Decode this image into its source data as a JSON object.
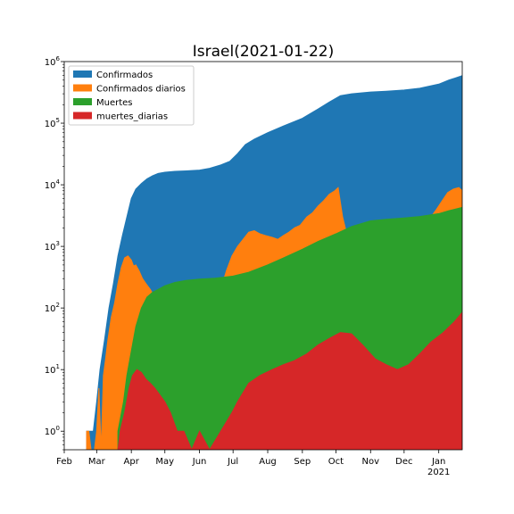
{
  "chart_data": {
    "type": "area",
    "title": "Israel(2021-01-22)",
    "xlabel": "",
    "ylabel": "",
    "yscale": "log",
    "ylim": [
      0.5,
      1000000
    ],
    "xlim": [
      "2020-02-01",
      "2021-01-22"
    ],
    "grid": false,
    "legend_position": "top-left",
    "x_ticks": [
      {
        "date": "2020-02-01",
        "label": "Feb"
      },
      {
        "date": "2020-03-01",
        "label": "Mar"
      },
      {
        "date": "2020-04-01",
        "label": "Apr"
      },
      {
        "date": "2020-05-01",
        "label": "May"
      },
      {
        "date": "2020-06-01",
        "label": "Jun"
      },
      {
        "date": "2020-07-01",
        "label": "Jul"
      },
      {
        "date": "2020-08-01",
        "label": "Aug"
      },
      {
        "date": "2020-09-01",
        "label": "Sep"
      },
      {
        "date": "2020-10-01",
        "label": "Oct"
      },
      {
        "date": "2020-11-01",
        "label": "Nov"
      },
      {
        "date": "2020-12-01",
        "label": "Dec"
      },
      {
        "date": "2021-01-01",
        "label": "Jan"
      }
    ],
    "x_year_label": "2021",
    "y_ticks": [
      {
        "value": 1,
        "base": "10",
        "exp": "0"
      },
      {
        "value": 10,
        "base": "10",
        "exp": "1"
      },
      {
        "value": 100,
        "base": "10",
        "exp": "2"
      },
      {
        "value": 1000,
        "base": "10",
        "exp": "3"
      },
      {
        "value": 10000,
        "base": "10",
        "exp": "4"
      },
      {
        "value": 100000,
        "base": "10",
        "exp": "5"
      },
      {
        "value": 1000000,
        "base": "10",
        "exp": "6"
      }
    ],
    "series": [
      {
        "name": "Confirmados",
        "color": "#1f77b4",
        "points": [
          [
            "2020-02-21",
            1
          ],
          [
            "2020-02-27",
            1
          ],
          [
            "2020-03-01",
            3
          ],
          [
            "2020-03-04",
            10
          ],
          [
            "2020-03-08",
            30
          ],
          [
            "2020-03-12",
            100
          ],
          [
            "2020-03-16",
            250
          ],
          [
            "2020-03-20",
            700
          ],
          [
            "2020-03-24",
            1500
          ],
          [
            "2020-03-28",
            3000
          ],
          [
            "2020-04-01",
            6000
          ],
          [
            "2020-04-05",
            8500
          ],
          [
            "2020-04-10",
            10500
          ],
          [
            "2020-04-15",
            12500
          ],
          [
            "2020-04-20",
            14000
          ],
          [
            "2020-04-25",
            15300
          ],
          [
            "2020-05-01",
            16000
          ],
          [
            "2020-05-10",
            16500
          ],
          [
            "2020-05-20",
            16800
          ],
          [
            "2020-06-01",
            17300
          ],
          [
            "2020-06-10",
            18500
          ],
          [
            "2020-06-20",
            21000
          ],
          [
            "2020-06-28",
            24000
          ],
          [
            "2020-07-05",
            32000
          ],
          [
            "2020-07-12",
            45000
          ],
          [
            "2020-07-20",
            55000
          ],
          [
            "2020-08-01",
            70000
          ],
          [
            "2020-08-15",
            90000
          ],
          [
            "2020-09-01",
            120000
          ],
          [
            "2020-09-15",
            170000
          ],
          [
            "2020-09-25",
            220000
          ],
          [
            "2020-10-05",
            280000
          ],
          [
            "2020-10-15",
            300000
          ],
          [
            "2020-11-01",
            320000
          ],
          [
            "2020-11-15",
            330000
          ],
          [
            "2020-12-01",
            345000
          ],
          [
            "2020-12-15",
            370000
          ],
          [
            "2021-01-01",
            430000
          ],
          [
            "2021-01-10",
            500000
          ],
          [
            "2021-01-22",
            590000
          ]
        ]
      },
      {
        "name": "Confirmados diarios",
        "color": "#ff7f0e",
        "points": [
          [
            "2020-02-21",
            1
          ],
          [
            "2020-02-23",
            1
          ],
          [
            "2020-02-25",
            0.5
          ],
          [
            "2020-02-28",
            0.5
          ],
          [
            "2020-03-01",
            1
          ],
          [
            "2020-03-03",
            5
          ],
          [
            "2020-03-05",
            0.5
          ],
          [
            "2020-03-07",
            8
          ],
          [
            "2020-03-09",
            15
          ],
          [
            "2020-03-11",
            30
          ],
          [
            "2020-03-14",
            70
          ],
          [
            "2020-03-17",
            120
          ],
          [
            "2020-03-20",
            250
          ],
          [
            "2020-03-23",
            450
          ],
          [
            "2020-03-26",
            650
          ],
          [
            "2020-03-29",
            700
          ],
          [
            "2020-04-01",
            600
          ],
          [
            "2020-04-03",
            480
          ],
          [
            "2020-04-05",
            500
          ],
          [
            "2020-04-08",
            400
          ],
          [
            "2020-04-11",
            300
          ],
          [
            "2020-04-14",
            250
          ],
          [
            "2020-04-18",
            200
          ],
          [
            "2020-04-22",
            150
          ],
          [
            "2020-04-26",
            80
          ],
          [
            "2020-04-30",
            60
          ],
          [
            "2020-05-04",
            20
          ],
          [
            "2020-05-08",
            15
          ],
          [
            "2020-05-12",
            10
          ],
          [
            "2020-05-16",
            5
          ],
          [
            "2020-05-20",
            15
          ],
          [
            "2020-05-24",
            8
          ],
          [
            "2020-05-28",
            30
          ],
          [
            "2020-06-01",
            80
          ],
          [
            "2020-06-05",
            120
          ],
          [
            "2020-06-10",
            150
          ],
          [
            "2020-06-15",
            180
          ],
          [
            "2020-06-20",
            200
          ],
          [
            "2020-06-25",
            400
          ],
          [
            "2020-06-30",
            700
          ],
          [
            "2020-07-05",
            1000
          ],
          [
            "2020-07-10",
            1300
          ],
          [
            "2020-07-15",
            1700
          ],
          [
            "2020-07-20",
            1800
          ],
          [
            "2020-07-25",
            1600
          ],
          [
            "2020-07-30",
            1500
          ],
          [
            "2020-08-05",
            1400
          ],
          [
            "2020-08-10",
            1300
          ],
          [
            "2020-08-15",
            1500
          ],
          [
            "2020-08-20",
            1700
          ],
          [
            "2020-08-25",
            2000
          ],
          [
            "2020-08-30",
            2200
          ],
          [
            "2020-09-05",
            3000
          ],
          [
            "2020-09-10",
            3500
          ],
          [
            "2020-09-15",
            4500
          ],
          [
            "2020-09-20",
            5500
          ],
          [
            "2020-09-25",
            7000
          ],
          [
            "2020-09-30",
            8000
          ],
          [
            "2020-10-03",
            9000
          ],
          [
            "2020-10-07",
            3000
          ],
          [
            "2020-10-10",
            1800
          ],
          [
            "2020-10-15",
            800
          ],
          [
            "2020-10-20",
            650
          ],
          [
            "2020-10-25",
            600
          ],
          [
            "2020-10-30",
            550
          ],
          [
            "2020-11-05",
            600
          ],
          [
            "2020-11-10",
            650
          ],
          [
            "2020-11-15",
            700
          ],
          [
            "2020-11-20",
            700
          ],
          [
            "2020-11-25",
            800
          ],
          [
            "2020-12-01",
            900
          ],
          [
            "2020-12-05",
            1100
          ],
          [
            "2020-12-10",
            1400
          ],
          [
            "2020-12-15",
            1700
          ],
          [
            "2020-12-20",
            2500
          ],
          [
            "2020-12-25",
            3000
          ],
          [
            "2020-12-30",
            4000
          ],
          [
            "2021-01-04",
            5500
          ],
          [
            "2021-01-09",
            7500
          ],
          [
            "2021-01-14",
            8500
          ],
          [
            "2021-01-19",
            9000
          ],
          [
            "2021-01-22",
            8000
          ]
        ]
      },
      {
        "name": "Muertes",
        "color": "#2ca02c",
        "points": [
          [
            "2020-03-20",
            1
          ],
          [
            "2020-03-25",
            3
          ],
          [
            "2020-03-28",
            8
          ],
          [
            "2020-04-01",
            20
          ],
          [
            "2020-04-05",
            50
          ],
          [
            "2020-04-10",
            100
          ],
          [
            "2020-04-15",
            150
          ],
          [
            "2020-04-20",
            180
          ],
          [
            "2020-04-25",
            200
          ],
          [
            "2020-05-01",
            230
          ],
          [
            "2020-05-10",
            260
          ],
          [
            "2020-05-20",
            280
          ],
          [
            "2020-06-01",
            295
          ],
          [
            "2020-06-15",
            305
          ],
          [
            "2020-07-01",
            330
          ],
          [
            "2020-07-15",
            380
          ],
          [
            "2020-08-01",
            500
          ],
          [
            "2020-08-15",
            650
          ],
          [
            "2020-09-01",
            900
          ],
          [
            "2020-09-15",
            1200
          ],
          [
            "2020-10-01",
            1600
          ],
          [
            "2020-10-15",
            2100
          ],
          [
            "2020-11-01",
            2600
          ],
          [
            "2020-11-15",
            2750
          ],
          [
            "2020-12-01",
            2900
          ],
          [
            "2020-12-15",
            3050
          ],
          [
            "2021-01-01",
            3400
          ],
          [
            "2021-01-10",
            3800
          ],
          [
            "2021-01-22",
            4300
          ]
        ]
      },
      {
        "name": "muertes_diarias",
        "color": "#d62728",
        "points": [
          [
            "2020-03-20",
            0.5
          ],
          [
            "2020-03-22",
            1
          ],
          [
            "2020-03-26",
            2
          ],
          [
            "2020-03-30",
            5
          ],
          [
            "2020-04-02",
            8
          ],
          [
            "2020-04-06",
            10
          ],
          [
            "2020-04-10",
            9
          ],
          [
            "2020-04-14",
            7
          ],
          [
            "2020-04-18",
            6
          ],
          [
            "2020-04-22",
            5
          ],
          [
            "2020-04-26",
            4
          ],
          [
            "2020-05-01",
            3
          ],
          [
            "2020-05-06",
            2
          ],
          [
            "2020-05-12",
            1
          ],
          [
            "2020-05-18",
            1
          ],
          [
            "2020-05-25",
            0.5
          ],
          [
            "2020-06-01",
            1
          ],
          [
            "2020-06-10",
            0.5
          ],
          [
            "2020-06-20",
            1
          ],
          [
            "2020-06-30",
            2
          ],
          [
            "2020-07-05",
            3
          ],
          [
            "2020-07-15",
            6
          ],
          [
            "2020-07-25",
            8
          ],
          [
            "2020-08-05",
            10
          ],
          [
            "2020-08-15",
            12
          ],
          [
            "2020-08-25",
            14
          ],
          [
            "2020-09-05",
            18
          ],
          [
            "2020-09-15",
            25
          ],
          [
            "2020-09-25",
            32
          ],
          [
            "2020-10-05",
            40
          ],
          [
            "2020-10-15",
            38
          ],
          [
            "2020-10-25",
            25
          ],
          [
            "2020-11-05",
            15
          ],
          [
            "2020-11-15",
            12
          ],
          [
            "2020-11-25",
            10
          ],
          [
            "2020-12-05",
            12
          ],
          [
            "2020-12-15",
            18
          ],
          [
            "2020-12-25",
            28
          ],
          [
            "2021-01-05",
            40
          ],
          [
            "2021-01-15",
            60
          ],
          [
            "2021-01-22",
            85
          ]
        ]
      }
    ]
  }
}
